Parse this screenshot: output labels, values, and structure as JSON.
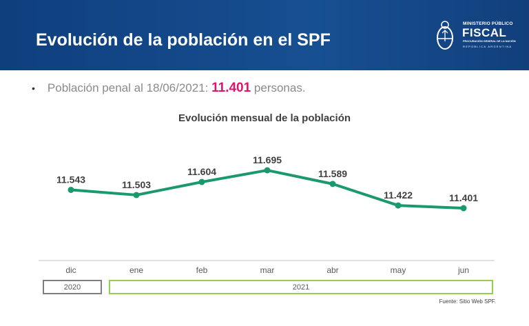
{
  "header": {
    "title": "Evolución de la población en el SPF",
    "logo": {
      "line1": "MINISTERIO PÚBLICO",
      "line2": "FISCAL",
      "line3": "PROCURACIÓN GENERAL DE LA NACIÓN",
      "line4": "REPÚBLICA ARGENTINA"
    }
  },
  "bullet": {
    "text": "Población penal al 18/06/2021: ",
    "value": "11.401",
    "suffix": " personas."
  },
  "chart_data": {
    "type": "line",
    "title": "Evolución mensual de la población",
    "categories": [
      "dic",
      "ene",
      "feb",
      "mar",
      "abr",
      "may",
      "jun"
    ],
    "values": [
      11.543,
      11.503,
      11.604,
      11.695,
      11.589,
      11.422,
      11.401
    ],
    "labels": [
      "11.543",
      "11.503",
      "11.604",
      "11.695",
      "11.589",
      "11.422",
      "11.401"
    ],
    "ylim": [
      11.0,
      12.0
    ],
    "grid": false,
    "line_color": "#1a9a6c",
    "year_groups": [
      {
        "label": "2020",
        "color": "#7f7f7f"
      },
      {
        "label": "2021",
        "color": "#92d050"
      }
    ]
  },
  "source": "Fuente: Sitio Web SPF."
}
